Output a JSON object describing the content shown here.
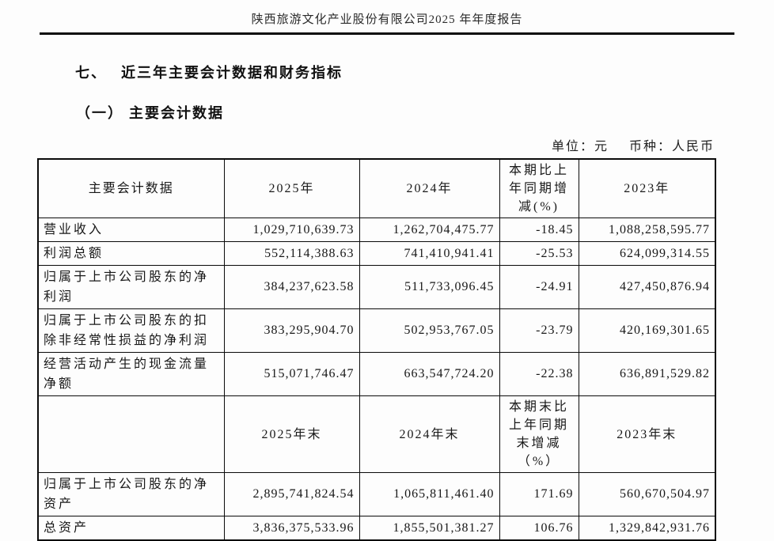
{
  "page": {
    "header_title": "陕西旅游文化产业股份有限公司2025 年年度报告",
    "section_no": "七、",
    "section_title": "近三年主要会计数据和财务指标",
    "subsection_title": "（一） 主要会计数据",
    "unit_label": "单位：元",
    "currency_label": "币种：人民币"
  },
  "table": {
    "annual_header": {
      "label": "主要会计数据",
      "col_2025": "2025年",
      "col_2024": "2024年",
      "col_change": "本期比上年同期增减(%)",
      "col_2023": "2023年"
    },
    "annual_rows": [
      {
        "label": "营业收入",
        "y2025": "1,029,710,639.73",
        "y2024": "1,262,704,475.77",
        "change": "-18.45",
        "y2023": "1,088,258,595.77"
      },
      {
        "label": "利润总额",
        "y2025": "552,114,388.63",
        "y2024": "741,410,941.41",
        "change": "-25.53",
        "y2023": "624,099,314.55"
      },
      {
        "label": "归属于上市公司股东的净利润",
        "y2025": "384,237,623.58",
        "y2024": "511,733,096.45",
        "change": "-24.91",
        "y2023": "427,450,876.94"
      },
      {
        "label": "归属于上市公司股东的扣除非经常性损益的净利润",
        "y2025": "383,295,904.70",
        "y2024": "502,953,767.05",
        "change": "-23.79",
        "y2023": "420,169,301.65"
      },
      {
        "label": "经营活动产生的现金流量净额",
        "y2025": "515,071,746.47",
        "y2024": "663,547,724.20",
        "change": "-22.38",
        "y2023": "636,891,529.82"
      }
    ],
    "period_end_header": {
      "label": "",
      "col_2025": "2025年末",
      "col_2024": "2024年末",
      "col_change": "本期末比上年同期末增减（%）",
      "col_2023": "2023年末"
    },
    "period_end_rows": [
      {
        "label": "归属于上市公司股东的净资产",
        "y2025": "2,895,741,824.54",
        "y2024": "1,065,811,461.40",
        "change": "171.69",
        "y2023": "560,670,504.97"
      },
      {
        "label": "总资产",
        "y2025": "3,836,375,533.96",
        "y2024": "1,855,501,381.27",
        "change": "106.76",
        "y2023": "1,329,842,931.76"
      }
    ]
  }
}
